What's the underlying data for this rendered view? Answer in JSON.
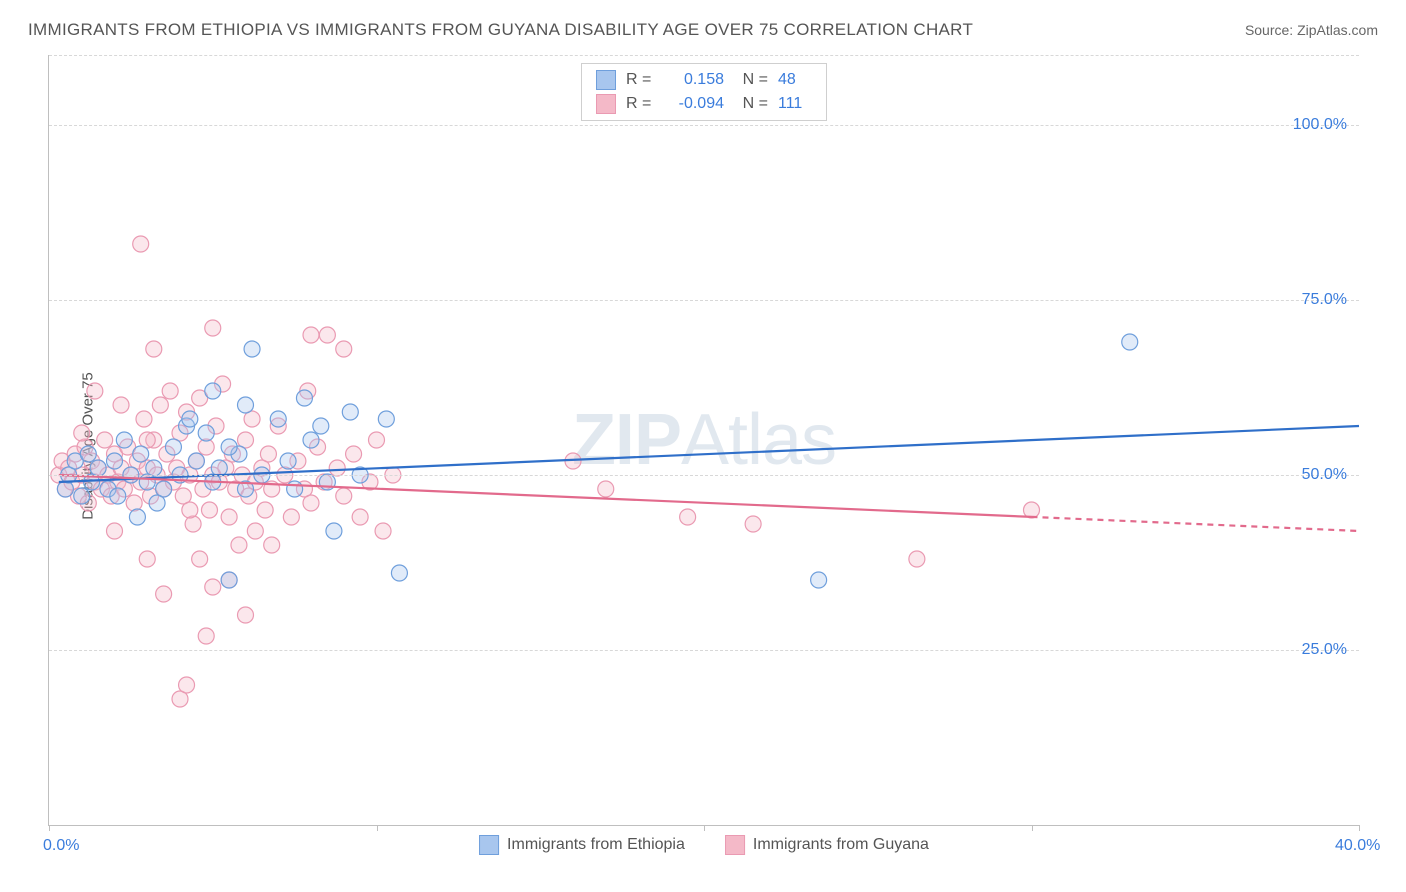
{
  "title": "IMMIGRANTS FROM ETHIOPIA VS IMMIGRANTS FROM GUYANA DISABILITY AGE OVER 75 CORRELATION CHART",
  "source": "Source: ZipAtlas.com",
  "y_axis_label": "Disability Age Over 75",
  "watermark": "ZIPAtlas",
  "chart": {
    "type": "scatter",
    "xlim": [
      0,
      40
    ],
    "ylim": [
      0,
      110
    ],
    "x_ticks": [
      0,
      10,
      20,
      30,
      40
    ],
    "x_tick_labels": {
      "0": "0.0%",
      "40": "40.0%"
    },
    "y_gridlines": [
      25,
      50,
      75,
      100,
      110
    ],
    "y_tick_labels": {
      "25": "25.0%",
      "50": "50.0%",
      "75": "75.0%",
      "100": "100.0%"
    },
    "background_color": "#ffffff",
    "grid_color": "#d8d8d8",
    "axis_color": "#bfbfbf",
    "marker_radius": 8,
    "marker_fill_opacity": 0.35,
    "line_width": 2.2
  },
  "series": [
    {
      "name": "Immigrants from Ethiopia",
      "color_fill": "#a8c6ee",
      "color_stroke": "#6f9fdc",
      "line_color": "#2f6fc9",
      "R": "0.158",
      "N": "48",
      "trend": {
        "x1": 0.3,
        "y1": 49,
        "x2": 40,
        "y2": 57,
        "dash_from_x": null
      },
      "points": [
        [
          0.5,
          48
        ],
        [
          0.6,
          50
        ],
        [
          0.8,
          52
        ],
        [
          1.0,
          47
        ],
        [
          1.2,
          53
        ],
        [
          1.3,
          49
        ],
        [
          1.5,
          51
        ],
        [
          1.8,
          48
        ],
        [
          2.0,
          52
        ],
        [
          2.1,
          47
        ],
        [
          2.3,
          55
        ],
        [
          2.5,
          50
        ],
        [
          2.8,
          53
        ],
        [
          3.0,
          49
        ],
        [
          3.2,
          51
        ],
        [
          3.5,
          48
        ],
        [
          3.8,
          54
        ],
        [
          4.0,
          50
        ],
        [
          4.2,
          57
        ],
        [
          4.5,
          52
        ],
        [
          4.8,
          56
        ],
        [
          5.0,
          49
        ],
        [
          5.2,
          51
        ],
        [
          5.5,
          35
        ],
        [
          5.8,
          53
        ],
        [
          6.0,
          48
        ],
        [
          6.2,
          68
        ],
        [
          6.5,
          50
        ],
        [
          7.0,
          58
        ],
        [
          7.3,
          52
        ],
        [
          7.8,
          61
        ],
        [
          8.0,
          55
        ],
        [
          8.3,
          57
        ],
        [
          8.7,
          42
        ],
        [
          9.2,
          59
        ],
        [
          9.5,
          50
        ],
        [
          10.3,
          58
        ],
        [
          10.7,
          36
        ],
        [
          6.0,
          60
        ],
        [
          4.3,
          58
        ],
        [
          2.7,
          44
        ],
        [
          3.3,
          46
        ],
        [
          5.0,
          62
        ],
        [
          5.5,
          54
        ],
        [
          7.5,
          48
        ],
        [
          23.5,
          35
        ],
        [
          33.0,
          69
        ],
        [
          8.5,
          49
        ]
      ]
    },
    {
      "name": "Immigrants from Guyana",
      "color_fill": "#f4b9c8",
      "color_stroke": "#ea9ab2",
      "line_color": "#e26a8c",
      "R": "-0.094",
      "N": "111",
      "trend": {
        "x1": 0.3,
        "y1": 50,
        "x2": 40,
        "y2": 42,
        "dash_from_x": 30
      },
      "points": [
        [
          0.3,
          50
        ],
        [
          0.4,
          52
        ],
        [
          0.5,
          48
        ],
        [
          0.6,
          51
        ],
        [
          0.7,
          49
        ],
        [
          0.8,
          53
        ],
        [
          0.9,
          47
        ],
        [
          1.0,
          50
        ],
        [
          1.1,
          54
        ],
        [
          1.2,
          46
        ],
        [
          1.3,
          52
        ],
        [
          1.4,
          49
        ],
        [
          1.5,
          51
        ],
        [
          1.6,
          48
        ],
        [
          1.7,
          55
        ],
        [
          1.8,
          50
        ],
        [
          1.9,
          47
        ],
        [
          2.0,
          53
        ],
        [
          2.1,
          49
        ],
        [
          2.2,
          51
        ],
        [
          2.3,
          48
        ],
        [
          2.4,
          54
        ],
        [
          2.5,
          50
        ],
        [
          2.6,
          46
        ],
        [
          2.7,
          52
        ],
        [
          2.8,
          49
        ],
        [
          2.9,
          58
        ],
        [
          3.0,
          51
        ],
        [
          3.1,
          47
        ],
        [
          3.2,
          55
        ],
        [
          3.3,
          50
        ],
        [
          3.4,
          60
        ],
        [
          3.5,
          48
        ],
        [
          3.6,
          53
        ],
        [
          3.7,
          62
        ],
        [
          3.8,
          49
        ],
        [
          3.9,
          51
        ],
        [
          4.0,
          56
        ],
        [
          4.1,
          47
        ],
        [
          4.2,
          59
        ],
        [
          4.3,
          50
        ],
        [
          4.4,
          43
        ],
        [
          4.5,
          52
        ],
        [
          4.6,
          61
        ],
        [
          4.7,
          48
        ],
        [
          4.8,
          54
        ],
        [
          4.9,
          45
        ],
        [
          5.0,
          50
        ],
        [
          5.1,
          57
        ],
        [
          5.2,
          49
        ],
        [
          5.3,
          63
        ],
        [
          5.4,
          51
        ],
        [
          5.5,
          44
        ],
        [
          5.6,
          53
        ],
        [
          5.7,
          48
        ],
        [
          5.8,
          40
        ],
        [
          5.9,
          50
        ],
        [
          6.0,
          55
        ],
        [
          6.1,
          47
        ],
        [
          6.2,
          58
        ],
        [
          6.3,
          49
        ],
        [
          6.3,
          42
        ],
        [
          6.5,
          51
        ],
        [
          6.6,
          45
        ],
        [
          6.7,
          53
        ],
        [
          6.8,
          48
        ],
        [
          7.0,
          57
        ],
        [
          7.2,
          50
        ],
        [
          7.4,
          44
        ],
        [
          7.6,
          52
        ],
        [
          7.8,
          48
        ],
        [
          7.9,
          62
        ],
        [
          8.0,
          46
        ],
        [
          8.2,
          54
        ],
        [
          8.4,
          49
        ],
        [
          8.5,
          70
        ],
        [
          8.8,
          51
        ],
        [
          9.0,
          47
        ],
        [
          9.3,
          53
        ],
        [
          9.5,
          44
        ],
        [
          9.8,
          49
        ],
        [
          10.0,
          55
        ],
        [
          10.2,
          42
        ],
        [
          10.5,
          50
        ],
        [
          2.8,
          83
        ],
        [
          4.0,
          18
        ],
        [
          4.2,
          20
        ],
        [
          4.8,
          27
        ],
        [
          5.0,
          71
        ],
        [
          5.5,
          35
        ],
        [
          6.0,
          30
        ],
        [
          3.0,
          38
        ],
        [
          3.2,
          68
        ],
        [
          2.2,
          60
        ],
        [
          1.4,
          62
        ],
        [
          1.0,
          56
        ],
        [
          16.0,
          52
        ],
        [
          17.0,
          48
        ],
        [
          19.5,
          44
        ],
        [
          21.5,
          43
        ],
        [
          26.5,
          38
        ],
        [
          30.0,
          45
        ],
        [
          8.0,
          70
        ],
        [
          9.0,
          68
        ],
        [
          5.0,
          34
        ],
        [
          3.5,
          33
        ],
        [
          3.0,
          55
        ],
        [
          4.6,
          38
        ],
        [
          6.8,
          40
        ],
        [
          4.3,
          45
        ],
        [
          2.0,
          42
        ]
      ]
    }
  ],
  "stat_box": {
    "label_R": "R =",
    "label_N": "N ="
  },
  "legend": {
    "item1": "Immigrants from Ethiopia",
    "item2": "Immigrants from Guyana"
  }
}
